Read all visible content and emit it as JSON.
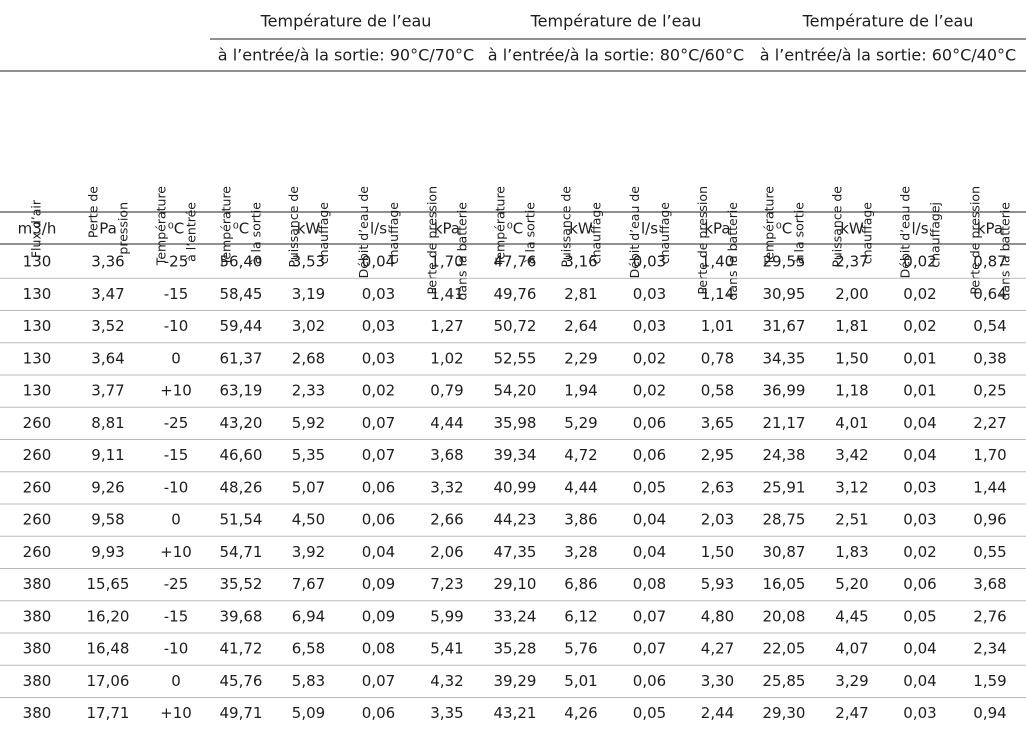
{
  "table": {
    "groups": [
      {
        "title": "Température de l’eau",
        "subtitle": "à l’entrée/à la sortie: 90°C/70°C"
      },
      {
        "title": "Température de l’eau",
        "subtitle": "à l’entrée/à la sortie: 80°C/60°C"
      },
      {
        "title": "Température de l’eau",
        "subtitle": "à l’entrée/à la sortie: 60°C/40°C"
      }
    ],
    "columns": [
      [
        "Flux d’air"
      ],
      [
        "Perte de",
        "pression"
      ],
      [
        "Température",
        "à l’entrée"
      ],
      [
        "Température",
        "à la sortie"
      ],
      [
        "Puissance de",
        "chauffage"
      ],
      [
        "Débit d’eau de",
        "chauffage"
      ],
      [
        "Perte de pression",
        "dans la batterie"
      ],
      [
        "Température",
        "à la sortie"
      ],
      [
        "Puissance de",
        "chauffage"
      ],
      [
        "Débit d’eau de",
        "chauffage"
      ],
      [
        "Perte de pression",
        "dans la batterie"
      ],
      [
        "Température",
        "à la sortie"
      ],
      [
        "Puissance de",
        "chauffage"
      ],
      [
        "Débit d’eau de",
        "chauffagej"
      ],
      [
        "Perte de pression",
        "dans la batterie"
      ]
    ],
    "units": [
      "m3/h",
      "Pa",
      "⁰C",
      "⁰C",
      "kW",
      "l/s",
      "kPa",
      "⁰C",
      "kW",
      "l/s",
      "kPa",
      "⁰C",
      "kW",
      "l/s",
      "kPa"
    ],
    "rows": [
      [
        "130",
        "3,36",
        "-25",
        "56,40",
        "3,53",
        "0,04",
        "1,70",
        "47,76",
        "3,16",
        "0,03",
        "1,40",
        "29,55",
        "2,37",
        "0,02",
        "0,87"
      ],
      [
        "130",
        "3,47",
        "-15",
        "58,45",
        "3,19",
        "0,03",
        "1,41",
        "49,76",
        "2,81",
        "0,03",
        "1,14",
        "30,95",
        "2,00",
        "0,02",
        "0,64"
      ],
      [
        "130",
        "3,52",
        "-10",
        "59,44",
        "3,02",
        "0,03",
        "1,27",
        "50,72",
        "2,64",
        "0,03",
        "1,01",
        "31,67",
        "1,81",
        "0,02",
        "0,54"
      ],
      [
        "130",
        "3,64",
        "0",
        "61,37",
        "2,68",
        "0,03",
        "1,02",
        "52,55",
        "2,29",
        "0,02",
        "0,78",
        "34,35",
        "1,50",
        "0,01",
        "0,38"
      ],
      [
        "130",
        "3,77",
        "+10",
        "63,19",
        "2,33",
        "0,02",
        "0,79",
        "54,20",
        "1,94",
        "0,02",
        "0,58",
        "36,99",
        "1,18",
        "0,01",
        "0,25"
      ],
      [
        "260",
        "8,81",
        "-25",
        "43,20",
        "5,92",
        "0,07",
        "4,44",
        "35,98",
        "5,29",
        "0,06",
        "3,65",
        "21,17",
        "4,01",
        "0,04",
        "2,27"
      ],
      [
        "260",
        "9,11",
        "-15",
        "46,60",
        "5,35",
        "0,07",
        "3,68",
        "39,34",
        "4,72",
        "0,06",
        "2,95",
        "24,38",
        "3,42",
        "0,04",
        "1,70"
      ],
      [
        "260",
        "9,26",
        "-10",
        "48,26",
        "5,07",
        "0,06",
        "3,32",
        "40,99",
        "4,44",
        "0,05",
        "2,63",
        "25,91",
        "3,12",
        "0,03",
        "1,44"
      ],
      [
        "260",
        "9,58",
        "0",
        "51,54",
        "4,50",
        "0,06",
        "2,66",
        "44,23",
        "3,86",
        "0,04",
        "2,03",
        "28,75",
        "2,51",
        "0,03",
        "0,96"
      ],
      [
        "260",
        "9,93",
        "+10",
        "54,71",
        "3,92",
        "0,04",
        "2,06",
        "47,35",
        "3,28",
        "0,04",
        "1,50",
        "30,87",
        "1,83",
        "0,02",
        "0,55"
      ],
      [
        "380",
        "15,65",
        "-25",
        "35,52",
        "7,67",
        "0,09",
        "7,23",
        "29,10",
        "6,86",
        "0,08",
        "5,93",
        "16,05",
        "5,20",
        "0,06",
        "3,68"
      ],
      [
        "380",
        "16,20",
        "-15",
        "39,68",
        "6,94",
        "0,09",
        "5,99",
        "33,24",
        "6,12",
        "0,07",
        "4,80",
        "20,08",
        "4,45",
        "0,05",
        "2,76"
      ],
      [
        "380",
        "16,48",
        "-10",
        "41,72",
        "6,58",
        "0,08",
        "5,41",
        "35,28",
        "5,76",
        "0,07",
        "4,27",
        "22,05",
        "4,07",
        "0,04",
        "2,34"
      ],
      [
        "380",
        "17,06",
        "0",
        "45,76",
        "5,83",
        "0,07",
        "4,32",
        "39,29",
        "5,01",
        "0,06",
        "3,30",
        "25,85",
        "3,29",
        "0,04",
        "1,59"
      ],
      [
        "380",
        "17,71",
        "+10",
        "49,71",
        "5,09",
        "0,06",
        "3,35",
        "43,21",
        "4,26",
        "0,05",
        "2,44",
        "29,30",
        "2,47",
        "0,03",
        "0,94"
      ]
    ]
  }
}
